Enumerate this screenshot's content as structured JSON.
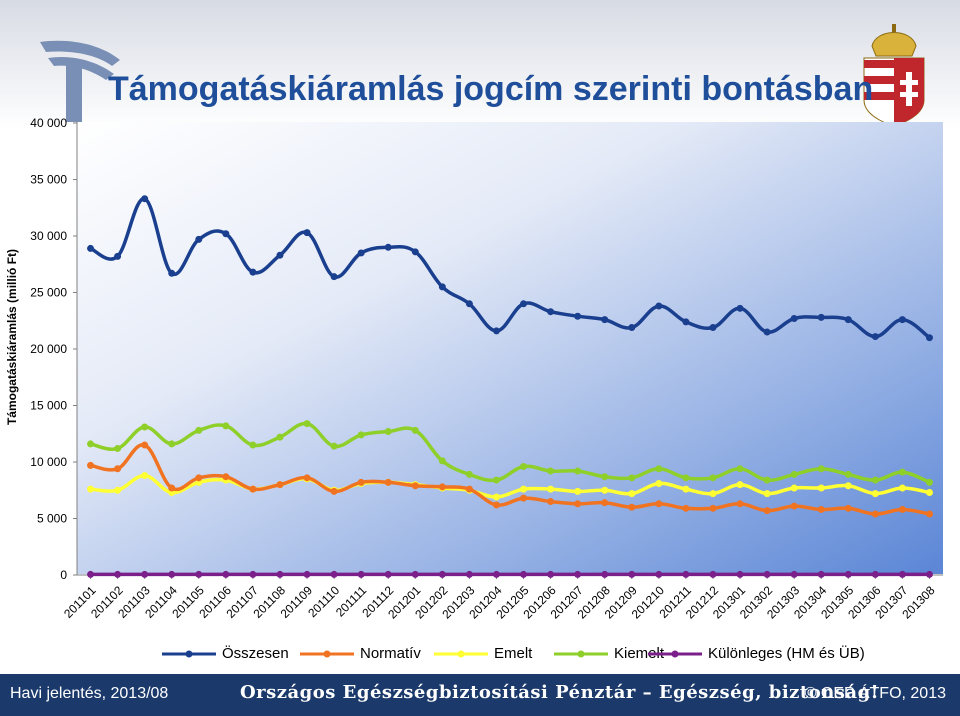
{
  "title": "Támogatáskiáramlás jogcím szerinti bontásban",
  "footer": {
    "left": "Havi jelentés, 2013/08",
    "middle": "Országos Egészségbiztosítási Pénztár – Egészség, biztonság!",
    "right": "© OEP ÁTFO, 2013"
  },
  "colors": {
    "Összesen": "#1a3f8f",
    "Normatív": "#f07322",
    "Emelt": "#ffff33",
    "Kiemelt": "#8fcf2a",
    "Különleges (HM és ÜB)": "#7b1f8a"
  },
  "chart_data": {
    "type": "line",
    "title": "Támogatáskiáramlás jogcím szerinti bontásban",
    "xlabel": "",
    "ylabel": "Támogatáskiáramlás (millió Ft)",
    "ylim": [
      0,
      40000
    ],
    "yticks": [
      0,
      5000,
      10000,
      15000,
      20000,
      25000,
      30000,
      35000,
      40000
    ],
    "ytick_labels": [
      "0",
      "5 000",
      "10 000",
      "15 000",
      "20 000",
      "25 000",
      "30 000",
      "35 000",
      "40 000"
    ],
    "grid": false,
    "legend": "bottom",
    "categories": [
      "201101",
      "201102",
      "201103",
      "201104",
      "201105",
      "201106",
      "201107",
      "201108",
      "201109",
      "201110",
      "201111",
      "201112",
      "201201",
      "201202",
      "201203",
      "201204",
      "201205",
      "201206",
      "201207",
      "201208",
      "201209",
      "201210",
      "201211",
      "201212",
      "201301",
      "201302",
      "201303",
      "201304",
      "201305",
      "201306",
      "201307",
      "201308"
    ],
    "series": [
      {
        "name": "Összesen",
        "values": [
          28900,
          28200,
          33300,
          26700,
          29700,
          30200,
          26800,
          28300,
          30300,
          26400,
          28500,
          29000,
          28600,
          25500,
          24000,
          21600,
          24000,
          23300,
          22900,
          22600,
          21900,
          23800,
          22400,
          21900,
          23600,
          21500,
          22700,
          22800,
          22600,
          21100,
          22600,
          21000
        ]
      },
      {
        "name": "Normatív",
        "values": [
          9700,
          9400,
          11500,
          7700,
          8600,
          8700,
          7600,
          8000,
          8600,
          7400,
          8200,
          8200,
          7900,
          7800,
          7600,
          6200,
          6800,
          6500,
          6300,
          6400,
          6000,
          6300,
          5900,
          5900,
          6300,
          5700,
          6100,
          5800,
          5900,
          5400,
          5800,
          5400
        ]
      },
      {
        "name": "Emelt",
        "values": [
          7600,
          7500,
          8800,
          7300,
          8200,
          8400,
          7600,
          8000,
          8500,
          7500,
          8100,
          8200,
          8000,
          7700,
          7500,
          6900,
          7600,
          7600,
          7400,
          7500,
          7200,
          8100,
          7600,
          7200,
          8000,
          7200,
          7700,
          7700,
          7900,
          7200,
          7700,
          7300
        ]
      },
      {
        "name": "Kiemelt",
        "values": [
          11600,
          11200,
          13100,
          11600,
          12800,
          13200,
          11500,
          12200,
          13400,
          11400,
          12400,
          12700,
          12800,
          10100,
          8900,
          8400,
          9600,
          9200,
          9200,
          8700,
          8600,
          9400,
          8600,
          8600,
          9400,
          8400,
          8900,
          9400,
          8900,
          8400,
          9100,
          8200
        ]
      },
      {
        "name": "Különleges (HM és ÜB)",
        "values": [
          50,
          50,
          50,
          50,
          50,
          50,
          50,
          50,
          50,
          50,
          50,
          50,
          50,
          50,
          50,
          50,
          50,
          50,
          50,
          50,
          50,
          50,
          50,
          50,
          50,
          50,
          50,
          50,
          50,
          50,
          50,
          50
        ]
      }
    ]
  }
}
